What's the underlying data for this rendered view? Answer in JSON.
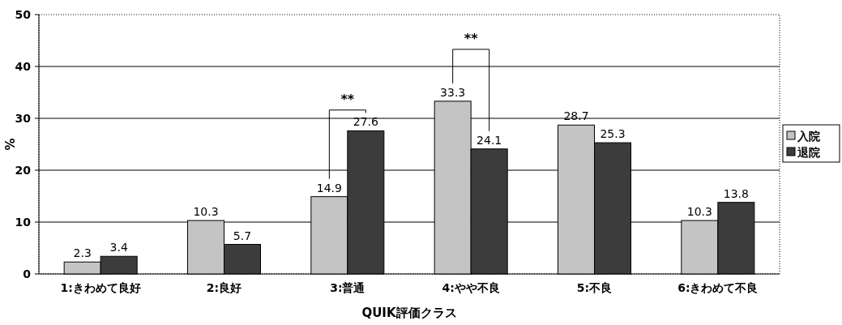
{
  "chart_data": {
    "type": "bar",
    "xlabel": "QUIK評価クラス",
    "ylabel": "%",
    "categories": [
      "1:きわめて良好",
      "2:良好",
      "3:普通",
      "4:やや不良",
      "5:不良",
      "6:きわめて不良"
    ],
    "series": [
      {
        "name": "入院",
        "color": "#c4c4c4",
        "values": [
          2.3,
          10.3,
          14.9,
          33.3,
          28.7,
          10.3
        ]
      },
      {
        "name": "退院",
        "color": "#3c3c3c",
        "values": [
          3.4,
          5.7,
          27.6,
          24.1,
          25.3,
          13.8
        ]
      }
    ],
    "ylim": [
      0,
      50
    ],
    "yticks": [
      0,
      10,
      20,
      30,
      40,
      50
    ],
    "grid": "y",
    "legend": "right",
    "data_labels": true,
    "annotations": [
      "**",
      "**"
    ]
  }
}
